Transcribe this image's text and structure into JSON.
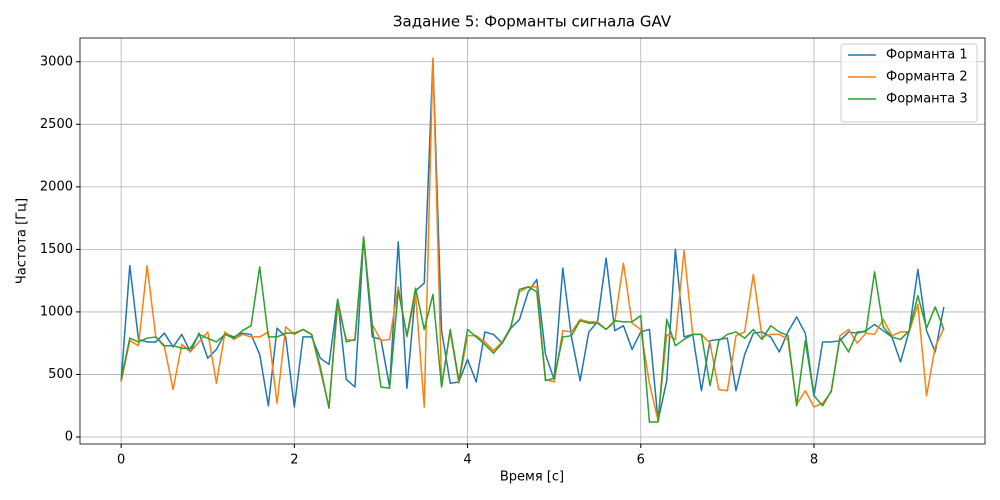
{
  "chart_data": {
    "type": "line",
    "title": "Задание 5: Форманты сигнала GAV",
    "xlabel": "Время [с]",
    "ylabel": "Частота [Гц]",
    "x": [
      0,
      0.1,
      0.2,
      0.3,
      0.4,
      0.5,
      0.6,
      0.7,
      0.8,
      0.9,
      1.0,
      1.1,
      1.2,
      1.3,
      1.4,
      1.5,
      1.6,
      1.7,
      1.8,
      1.9,
      2.0,
      2.1,
      2.2,
      2.3,
      2.4,
      2.5,
      2.6,
      2.7,
      2.8,
      2.9,
      3.0,
      3.1,
      3.2,
      3.3,
      3.4,
      3.5,
      3.6,
      3.7,
      3.8,
      3.9,
      4.0,
      4.1,
      4.2,
      4.3,
      4.4,
      4.5,
      4.6,
      4.7,
      4.8,
      4.9,
      5.0,
      5.1,
      5.2,
      5.3,
      5.4,
      5.5,
      5.6,
      5.7,
      5.8,
      5.9,
      6.0,
      6.1,
      6.2,
      6.3,
      6.4,
      6.5,
      6.6,
      6.7,
      6.8,
      6.9,
      7.0,
      7.1,
      7.2,
      7.3,
      7.4,
      7.5,
      7.6,
      7.7,
      7.8,
      7.9,
      8.0,
      8.1,
      8.2,
      8.3,
      8.4,
      8.5,
      8.6,
      8.7,
      8.8,
      8.9,
      9.0,
      9.1,
      9.2,
      9.3,
      9.4,
      9.5
    ],
    "series": [
      {
        "name": "Форманта 1",
        "color": "#1f77b4",
        "values": [
          450,
          1370,
          780,
          760,
          760,
          830,
          720,
          820,
          680,
          830,
          630,
          700,
          830,
          800,
          830,
          820,
          660,
          250,
          870,
          800,
          240,
          800,
          800,
          630,
          580,
          1100,
          460,
          400,
          1590,
          800,
          780,
          400,
          1560,
          390,
          1170,
          1230,
          3020,
          850,
          430,
          440,
          620,
          440,
          840,
          820,
          750,
          870,
          940,
          1160,
          1260,
          660,
          460,
          1350,
          800,
          450,
          840,
          920,
          1430,
          850,
          890,
          700,
          840,
          860,
          130,
          450,
          1500,
          800,
          820,
          370,
          770,
          780,
          790,
          370,
          660,
          830,
          840,
          800,
          680,
          840,
          960,
          830,
          330,
          760,
          760,
          770,
          840,
          830,
          850,
          900,
          850,
          800,
          600,
          850,
          1340,
          850,
          680,
          1040
        ]
      },
      {
        "name": "Форманта 2",
        "color": "#ff7f0e",
        "values": [
          440,
          770,
          730,
          1370,
          800,
          720,
          380,
          740,
          680,
          760,
          840,
          430,
          840,
          780,
          820,
          800,
          800,
          840,
          270,
          880,
          820,
          860,
          820,
          530,
          240,
          1050,
          780,
          770,
          1590,
          900,
          770,
          780,
          1200,
          800,
          1140,
          240,
          3030,
          410,
          840,
          430,
          810,
          810,
          760,
          690,
          760,
          880,
          1160,
          1200,
          1200,
          460,
          440,
          850,
          840,
          940,
          920,
          920,
          860,
          920,
          1390,
          910,
          860,
          430,
          130,
          820,
          780,
          1490,
          820,
          820,
          750,
          380,
          370,
          810,
          840,
          1300,
          800,
          820,
          820,
          780,
          260,
          370,
          240,
          270,
          360,
          810,
          860,
          750,
          830,
          820,
          940,
          810,
          840,
          840,
          1060,
          330,
          720,
          870
        ]
      },
      {
        "name": "Форманта 3",
        "color": "#2ca02c",
        "values": [
          460,
          790,
          760,
          790,
          800,
          730,
          730,
          710,
          710,
          820,
          790,
          760,
          820,
          790,
          850,
          890,
          1360,
          800,
          800,
          830,
          830,
          860,
          820,
          560,
          230,
          1100,
          760,
          780,
          1600,
          880,
          400,
          390,
          1170,
          810,
          1190,
          860,
          1140,
          400,
          860,
          450,
          860,
          800,
          740,
          670,
          750,
          880,
          1180,
          1200,
          1160,
          450,
          470,
          800,
          810,
          930,
          910,
          910,
          860,
          930,
          920,
          920,
          970,
          120,
          120,
          940,
          730,
          780,
          820,
          820,
          410,
          770,
          820,
          840,
          790,
          860,
          780,
          890,
          840,
          810,
          250,
          770,
          330,
          250,
          370,
          790,
          680,
          840,
          840,
          1320,
          880,
          800,
          780,
          850,
          1130,
          870,
          1040,
          860
        ]
      }
    ],
    "xlim": [
      -0.475,
      9.975
    ],
    "xticks": [
      0,
      2,
      4,
      6,
      8
    ],
    "ylim": [
      -56,
      3190
    ],
    "yticks": [
      0,
      500,
      1000,
      1500,
      2000,
      2500,
      3000
    ],
    "grid": true,
    "legend": "upper right"
  }
}
